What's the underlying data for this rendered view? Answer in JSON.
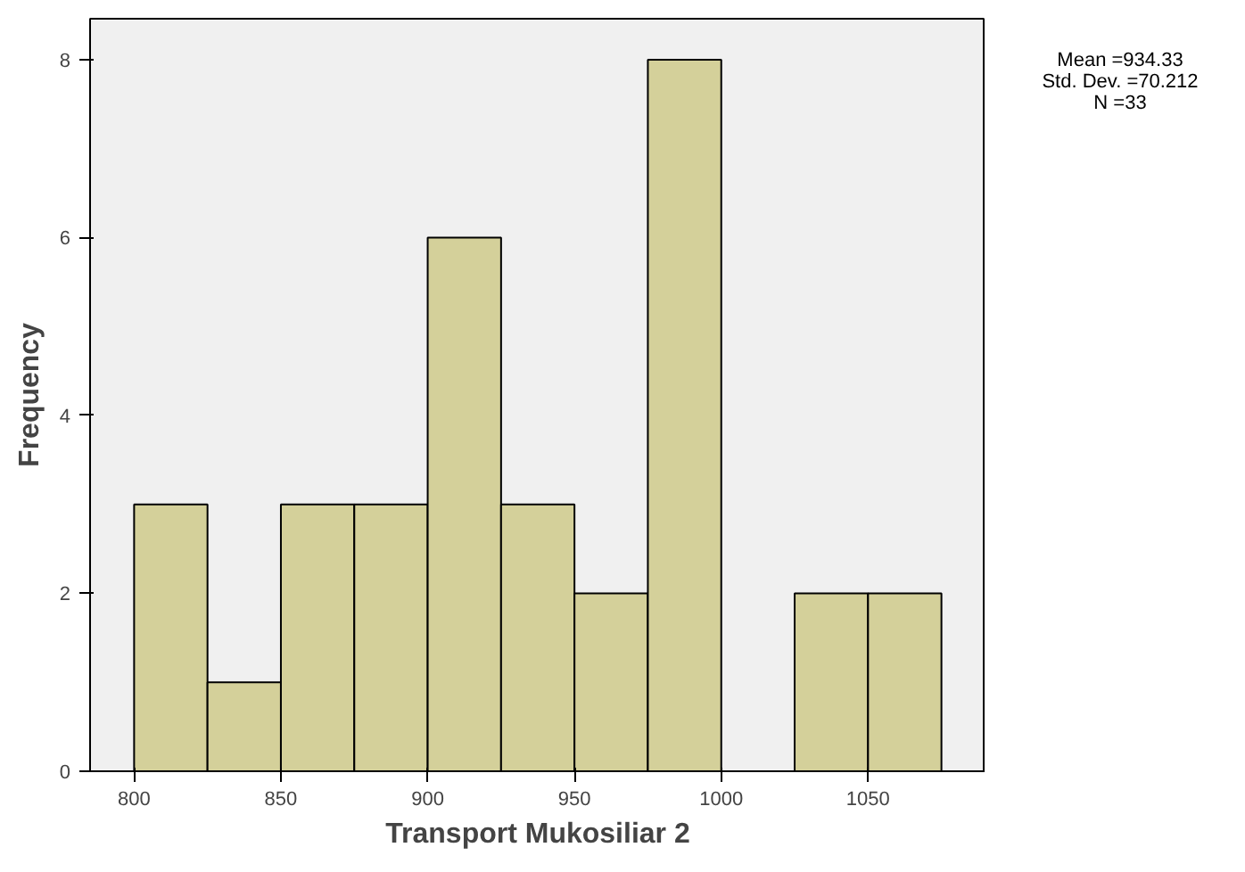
{
  "chart_data": {
    "type": "histogram",
    "xlabel": "Transport Mukosiliar 2",
    "ylabel": "Frequency",
    "bins": [
      800,
      825,
      850,
      875,
      900,
      925,
      950,
      975,
      1000,
      1025,
      1050,
      1075
    ],
    "values": [
      3,
      1,
      3,
      3,
      6,
      3,
      2,
      8,
      0,
      2,
      2
    ],
    "color": "#d4d09a",
    "xlim": [
      785,
      1090
    ],
    "ylim": [
      0,
      8.46
    ],
    "xticks": [
      800,
      850,
      900,
      950,
      1000,
      1050
    ],
    "yticks": [
      0,
      2,
      4,
      6,
      8
    ],
    "grid": false,
    "annotations": [
      "Mean =934.33",
      "Std. Dev. =70.212",
      "N =33"
    ]
  }
}
